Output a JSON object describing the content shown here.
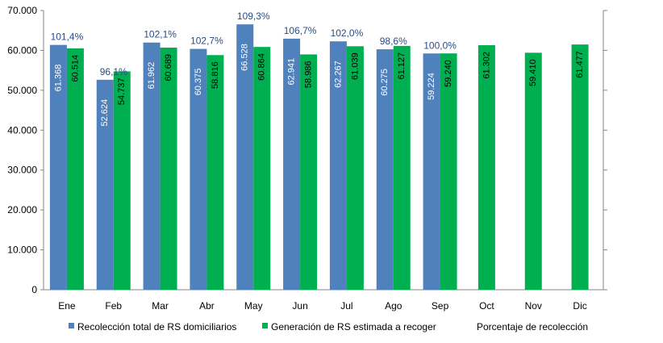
{
  "chart_data": {
    "type": "bar",
    "categories": [
      "Ene",
      "Feb",
      "Mar",
      "Abr",
      "May",
      "Jun",
      "Jul",
      "Ago",
      "Sep",
      "Oct",
      "Nov",
      "Dic"
    ],
    "series": [
      {
        "name": "Recolección total de RS domiciliarios",
        "color": "#4f81bd",
        "values": [
          61368,
          52624,
          61962,
          60375,
          66528,
          62941,
          62267,
          60275,
          59224,
          null,
          null,
          null
        ],
        "labels": [
          "61.368",
          "52.624",
          "61.962",
          "60.375",
          "66.528",
          "62.941",
          "62.267",
          "60.275",
          "59.224",
          null,
          null,
          null
        ]
      },
      {
        "name": "Generación de RS estimada a recoger",
        "color": "#00b050",
        "values": [
          60514,
          54737,
          60689,
          58816,
          60864,
          58986,
          61039,
          61127,
          59240,
          61302,
          59410,
          61477
        ],
        "labels": [
          "60.514",
          "54.737",
          "60.689",
          "58.816",
          "60.864",
          "58.986",
          "61.039",
          "61.127",
          "59.240",
          "61.302",
          "59.410",
          "61.477"
        ]
      },
      {
        "name": "Porcentaje de recolección",
        "color": "#2a4d86",
        "values": [
          101.4,
          96.1,
          102.1,
          102.7,
          109.3,
          106.7,
          102.0,
          98.6,
          100.0,
          null,
          null,
          null
        ],
        "labels": [
          "101,4%",
          "96,1%",
          "102,1%",
          "102,7%",
          "109,3%",
          "106,7%",
          "102,0%",
          "98,6%",
          "100,0%",
          null,
          null,
          null
        ]
      }
    ],
    "y_ticks": [
      "0",
      "10.000",
      "20.000",
      "30.000",
      "40.000",
      "50.000",
      "60.000",
      "70.000"
    ],
    "ylim": [
      0,
      70000
    ],
    "grid": false,
    "legend_position": "bottom"
  }
}
